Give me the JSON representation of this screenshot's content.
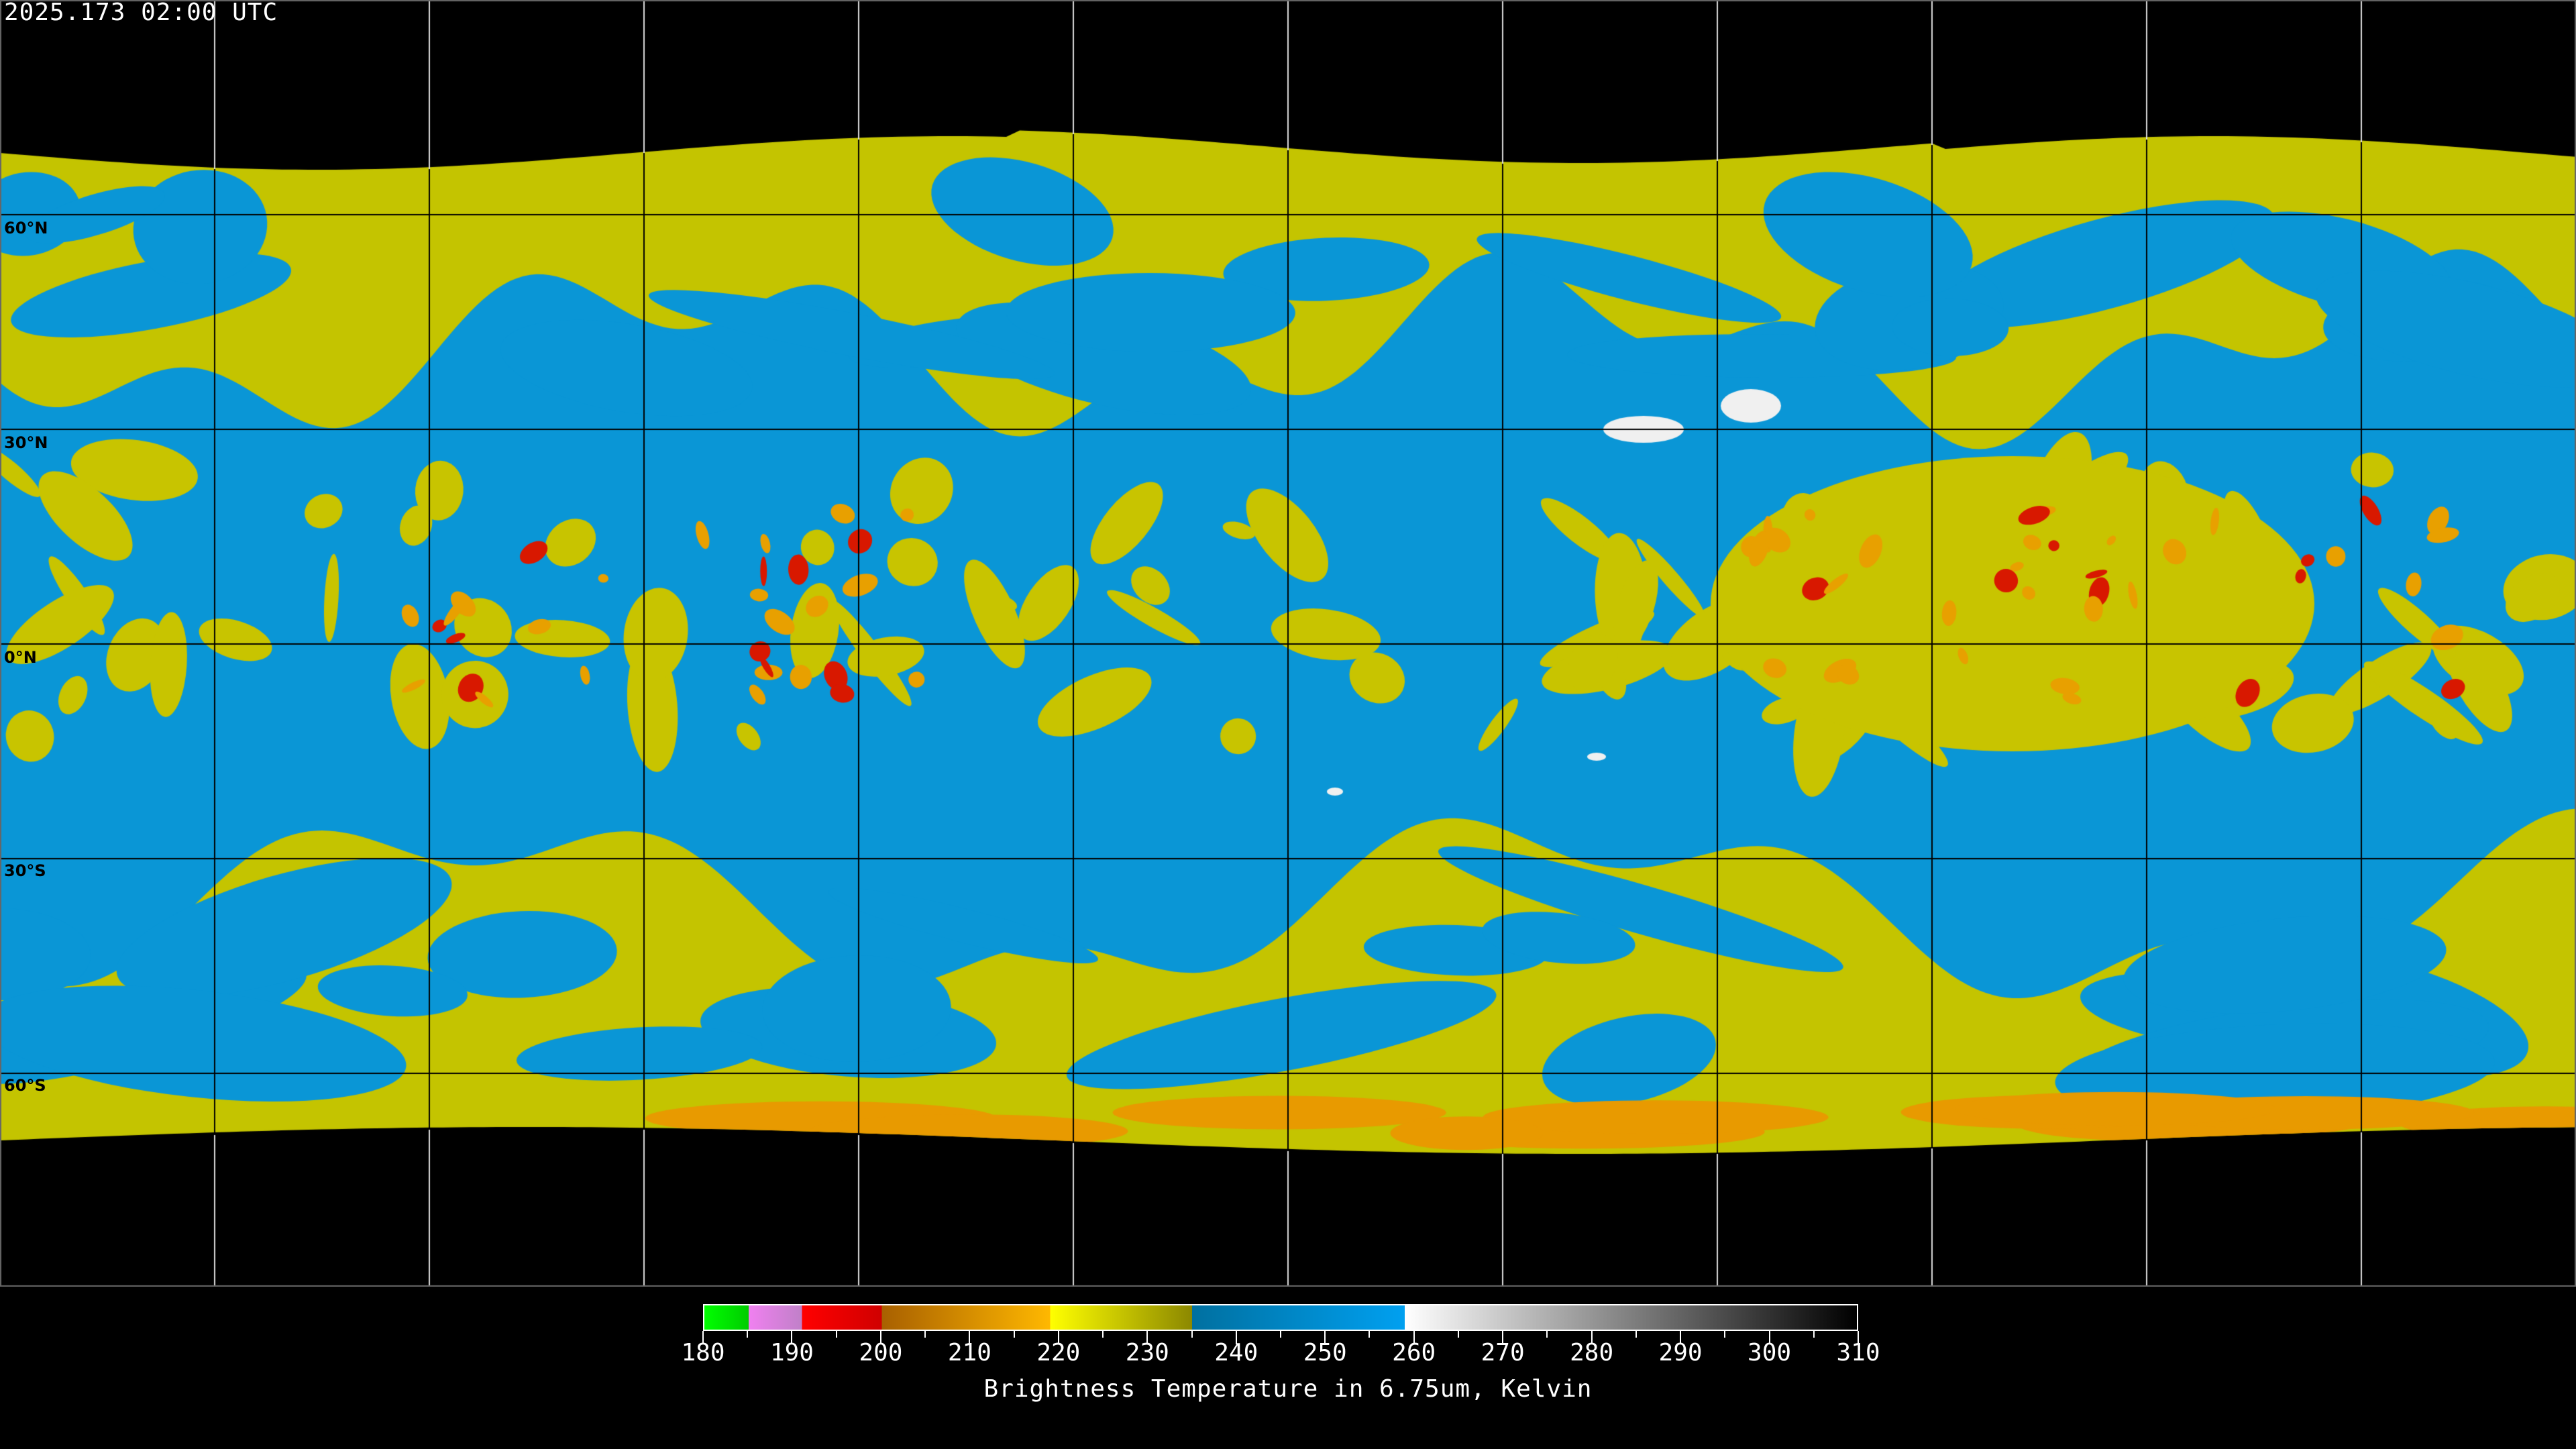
{
  "header": {
    "timestamp": "2025.173 02:00 UTC"
  },
  "map": {
    "projection": "equirectangular",
    "latitude_labels": [
      "60°N",
      "30°N",
      "0°N",
      "30°S",
      "60°S"
    ],
    "grid_spacing_degrees": 30
  },
  "colorbar": {
    "title": "Brightness Temperature in 6.75um, Kelvin",
    "min": 180,
    "max": 310,
    "tick_labels": [
      "180",
      "190",
      "200",
      "210",
      "220",
      "230",
      "240",
      "250",
      "260",
      "270",
      "280",
      "290",
      "300",
      "310"
    ],
    "segments": [
      {
        "from": 180,
        "to": 185,
        "colors": [
          "#00ff00",
          "#00cc00"
        ]
      },
      {
        "from": 185,
        "to": 191,
        "colors": [
          "#f080f0",
          "#c080c8"
        ]
      },
      {
        "from": 191,
        "to": 200,
        "colors": [
          "#ff0000",
          "#d00000"
        ]
      },
      {
        "from": 200,
        "to": 219,
        "colors": [
          "#a86000",
          "#ffb800"
        ]
      },
      {
        "from": 219,
        "to": 235,
        "colors": [
          "#ffff00",
          "#8c8800"
        ]
      },
      {
        "from": 235,
        "to": 259,
        "colors": [
          "#0070a0",
          "#00a0f0"
        ]
      },
      {
        "from": 259,
        "to": 310,
        "colors": [
          "#ffffff",
          "#000000"
        ]
      }
    ]
  }
}
